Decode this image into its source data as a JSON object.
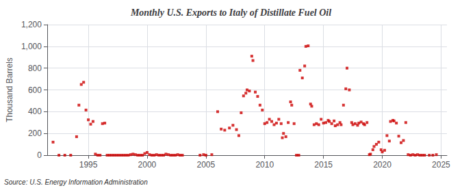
{
  "chart_data": {
    "type": "scatter",
    "title": "Monthly U.S. Exports to Italy of Distillate Fuel Oil",
    "ylabel": "Thousand Barrels",
    "annotations": [
      "Source: U.S. Energy Information Administration"
    ],
    "color": "#cc0000",
    "marker": "square",
    "grid": true,
    "xlim": [
      1991.5,
      2025.5
    ],
    "xticks": [
      1995,
      2000,
      2005,
      2010,
      2015,
      2020,
      2025
    ],
    "ylim": [
      0,
      1200
    ],
    "yticks": [
      0,
      200,
      400,
      600,
      800,
      {
        "value": 1000,
        "label": "1,000"
      },
      {
        "value": 1200,
        "label": "1,200"
      }
    ],
    "x": [
      1992.0,
      1992.5,
      1993.0,
      1993.5,
      1994.0,
      1994.2,
      1994.4,
      1994.6,
      1994.8,
      1995.0,
      1995.2,
      1995.4,
      1995.6,
      1995.8,
      1996.0,
      1996.2,
      1996.4,
      1996.6,
      1996.8,
      1997.0,
      1997.2,
      1997.4,
      1997.6,
      1997.8,
      1998.0,
      1998.2,
      1998.4,
      1998.6,
      1998.8,
      1999.0,
      1999.2,
      1999.4,
      1999.6,
      1999.8,
      2000.0,
      2000.2,
      2000.4,
      2000.6,
      2000.8,
      2001.0,
      2001.2,
      2001.4,
      2001.6,
      2001.8,
      2002.0,
      2002.2,
      2002.4,
      2002.6,
      2002.8,
      2003.0,
      2004.5,
      2004.8,
      2005.0,
      2005.5,
      2006.0,
      2006.3,
      2006.6,
      2007.0,
      2007.3,
      2007.6,
      2007.8,
      2008.0,
      2008.2,
      2008.4,
      2008.5,
      2008.7,
      2008.9,
      2009.0,
      2009.2,
      2009.4,
      2009.6,
      2009.8,
      2010.0,
      2010.2,
      2010.4,
      2010.6,
      2010.8,
      2011.0,
      2011.2,
      2011.4,
      2011.5,
      2011.6,
      2011.8,
      2012.0,
      2012.2,
      2012.3,
      2012.5,
      2012.7,
      2012.9,
      2013.0,
      2013.2,
      2013.4,
      2013.5,
      2013.7,
      2013.9,
      2014.0,
      2014.2,
      2014.4,
      2014.6,
      2014.8,
      2015.0,
      2015.2,
      2015.4,
      2015.5,
      2015.7,
      2015.9,
      2016.0,
      2016.2,
      2016.4,
      2016.5,
      2016.7,
      2016.9,
      2017.0,
      2017.2,
      2017.4,
      2017.5,
      2017.7,
      2017.9,
      2018.0,
      2018.2,
      2018.4,
      2018.5,
      2018.7,
      2018.9,
      2019.0,
      2019.2,
      2019.3,
      2019.5,
      2019.7,
      2019.9,
      2020.0,
      2020.2,
      2020.4,
      2020.6,
      2020.7,
      2020.9,
      2021.0,
      2021.2,
      2021.4,
      2021.6,
      2021.8,
      2022.0,
      2022.2,
      2022.4,
      2022.6,
      2022.8,
      2023.0,
      2023.2,
      2023.4,
      2023.6,
      2024.0,
      2024.3,
      2024.6
    ],
    "values": [
      120,
      0,
      0,
      0,
      170,
      460,
      650,
      670,
      415,
      325,
      285,
      310,
      10,
      0,
      0,
      290,
      295,
      0,
      0,
      0,
      0,
      0,
      0,
      0,
      0,
      0,
      0,
      5,
      10,
      5,
      0,
      0,
      0,
      15,
      25,
      5,
      0,
      0,
      5,
      0,
      0,
      0,
      10,
      5,
      0,
      0,
      0,
      5,
      0,
      0,
      0,
      5,
      0,
      5,
      400,
      240,
      230,
      250,
      275,
      235,
      180,
      390,
      545,
      570,
      600,
      590,
      910,
      870,
      580,
      540,
      460,
      415,
      290,
      300,
      330,
      310,
      280,
      295,
      330,
      290,
      160,
      200,
      170,
      300,
      490,
      460,
      290,
      0,
      0,
      780,
      710,
      820,
      1000,
      1005,
      470,
      450,
      280,
      290,
      280,
      330,
      295,
      300,
      320,
      310,
      290,
      315,
      270,
      280,
      300,
      280,
      460,
      610,
      800,
      600,
      300,
      280,
      290,
      275,
      295,
      305,
      290,
      280,
      300,
      5,
      10,
      50,
      80,
      100,
      120,
      50,
      30,
      45,
      180,
      130,
      310,
      320,
      315,
      295,
      175,
      115,
      135,
      300,
      5,
      0,
      5,
      0,
      5,
      0,
      0,
      0,
      0,
      0,
      5
    ]
  }
}
